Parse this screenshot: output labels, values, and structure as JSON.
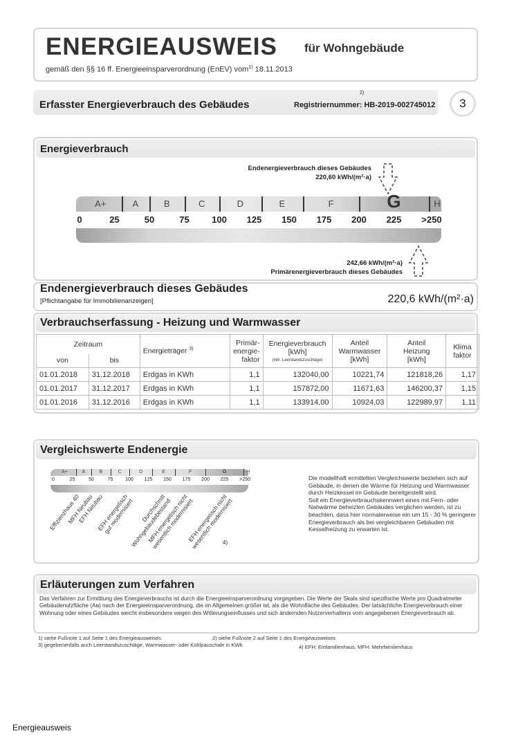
{
  "header": {
    "title": "ENERGIEAUSWEIS",
    "subtitle": "für Wohngebäude",
    "legal": "gemäß den §§ 16 ff. Energieeinsparverordnung (EnEV) vom",
    "footnote_mark": "1)",
    "date": "18.11.2013"
  },
  "section_bar": {
    "title": "Erfasster Energieverbrauch des Gebäudes",
    "reg_footnote": "2)",
    "reg_label": "Registriernummer: HB-2019-002745012",
    "page_number": "3"
  },
  "energieverbrauch": {
    "title": "Energieverbrauch",
    "end_label": "Endenergieverbrauch dieses Gebäudes",
    "end_value": "220,60 kWh/(m²·a)",
    "end_numeric": 220.6,
    "prim_label": "Primärenergieverbrauch dieses Gebäudes",
    "prim_value": "242,66 kWh/(m²·a)",
    "prim_numeric": 242.66,
    "highlight_class": "G",
    "classes": [
      {
        "label": "A+",
        "from": 0,
        "to": 30
      },
      {
        "label": "A",
        "from": 30,
        "to": 50
      },
      {
        "label": "B",
        "from": 50,
        "to": 75
      },
      {
        "label": "C",
        "from": 75,
        "to": 100
      },
      {
        "label": "D",
        "from": 100,
        "to": 130
      },
      {
        "label": "E",
        "from": 130,
        "to": 160
      },
      {
        "label": "F",
        "from": 160,
        "to": 200
      },
      {
        "label": "G",
        "from": 200,
        "to": 250
      },
      {
        "label": "H",
        "from": 250,
        "to": 262
      }
    ],
    "ticks": [
      "0",
      "25",
      "50",
      "75",
      "100",
      "125",
      "150",
      "175",
      "200",
      "225",
      ">250"
    ]
  },
  "endenergie": {
    "title": "Endenergieverbrauch dieses Gebäudes",
    "note": "[Pflichtangabe für Immobilienanzeigen]",
    "value": "220,6 kWh/(m²·a)"
  },
  "verbrauch": {
    "title": "Verbrauchserfassung - Heizung und Warmwasser",
    "headers": {
      "zeitraum": "Zeitraum",
      "von": "von",
      "bis": "bis",
      "traeger": "Energieträger",
      "traeger_fn": "3)",
      "primaer": "Primär-\nenergie-\nfaktor",
      "verbrauch": "Energieverbrauch\n[kWh]",
      "verbrauch_note": "(inkl. Leerstandszuschläge)",
      "warmwasser": "Anteil\nWarmwasser\n[kWh]",
      "heizung": "Anteil\nHeizung\n[kWh]",
      "klima": "Klima\nfaktor"
    },
    "rows": [
      [
        "01.01.2018",
        "31.12.2018",
        "Erdgas in KWh",
        "1,1",
        "132040,00",
        "10221,74",
        "121818,26",
        "1,17"
      ],
      [
        "01.01.2017",
        "31.12.2017",
        "Erdgas in KWh",
        "1,1",
        "157872,00",
        "11671,63",
        "146200,37",
        "1,15"
      ],
      [
        "01.01.2016",
        "31.12.2016",
        "Erdgas in KWh",
        "1,1",
        "133914,00",
        "10924,03",
        "122989,97",
        "1,11"
      ]
    ]
  },
  "vergleich": {
    "title": "Vergleichswerte Endenergie",
    "labels": [
      "Effizienzhaus 40",
      "MFH Neubau",
      "EFH Neubau",
      "EFH energetisch\ngut modernisiert",
      "Durchschnitt\nWohngebäudebestand",
      "MFH energetisch nicht\nwesentlich modernisiert",
      "EFH energetisch nicht\nwesentlich modernisiert"
    ],
    "footnote": "4)",
    "text": "Die modellhaft ermittelten Vergleichswerte beziehen sich auf Gebäude, in denen die Wärme für Heizung und Warmwasser durch Heizkessel im Gebäude bereitgestellt wird.\nSoll ein Energieverbrauchskennwert eines mit Fern- oder Nahwärme beheizten Gebäudes verglichen werden, ist zu beachten, dass hier normalerweise ein um 15 - 30 % geringerer Energieverbrauch als bei vergleichbaren Gebäuden mit Kesselheizung zu erwarten ist."
  },
  "erlaeuterung": {
    "title": "Erläuterungen zum Verfahren",
    "text": "Das Verfahren zur Ermittlung des Energieverbrauchs ist durch die Energieeinsparverordnung vorgegeben. Die Werte der Skala sind spezifische Werte pro Quadratmeter Gebäudenutzfläche (Aɴ) nach der Energieeinsparverordnung, die im Allgemeinen größer ist, als die Wohnfläche des Gebäudes. Der tatsächliche Energieverbrauch einer Wohnung oder eines Gebäudes weicht insbesondere wegen des Witterungseinflusses und sich ändernden Nutzerverhaltens vom angegebenen Energieverbrauch ab."
  },
  "footnotes": [
    "1)  siehe Fußnote 1 auf Seite 1 des Energieausweises",
    "2)  siehe Fußnote 2 auf Seite 1 des Energieausweises",
    "3)  gegebenenfalls auch Leerstandszuschläge, Warmwasser- oder Kühlpauschale in KWh",
    "4)  EFH: Einfamilienhaus, MFH: Mehrfamilienhaus"
  ],
  "caption": "Energieausweis"
}
